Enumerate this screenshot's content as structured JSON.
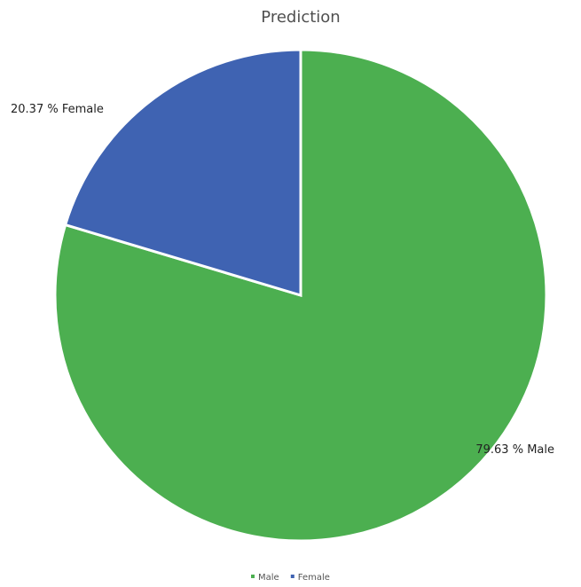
{
  "chart_data": {
    "type": "pie",
    "title": "Prediction",
    "categories": [
      "Male",
      "Female"
    ],
    "values": [
      79.63,
      20.37
    ],
    "data_labels": [
      "79.63 % Male",
      "20.37 % Female"
    ],
    "colors": [
      "#4caf50",
      "#3f63b2"
    ],
    "start_angle": "12 o'clock",
    "direction": "clockwise",
    "legend": {
      "placement": "bottom",
      "entries": [
        "Male",
        "Female"
      ]
    }
  }
}
